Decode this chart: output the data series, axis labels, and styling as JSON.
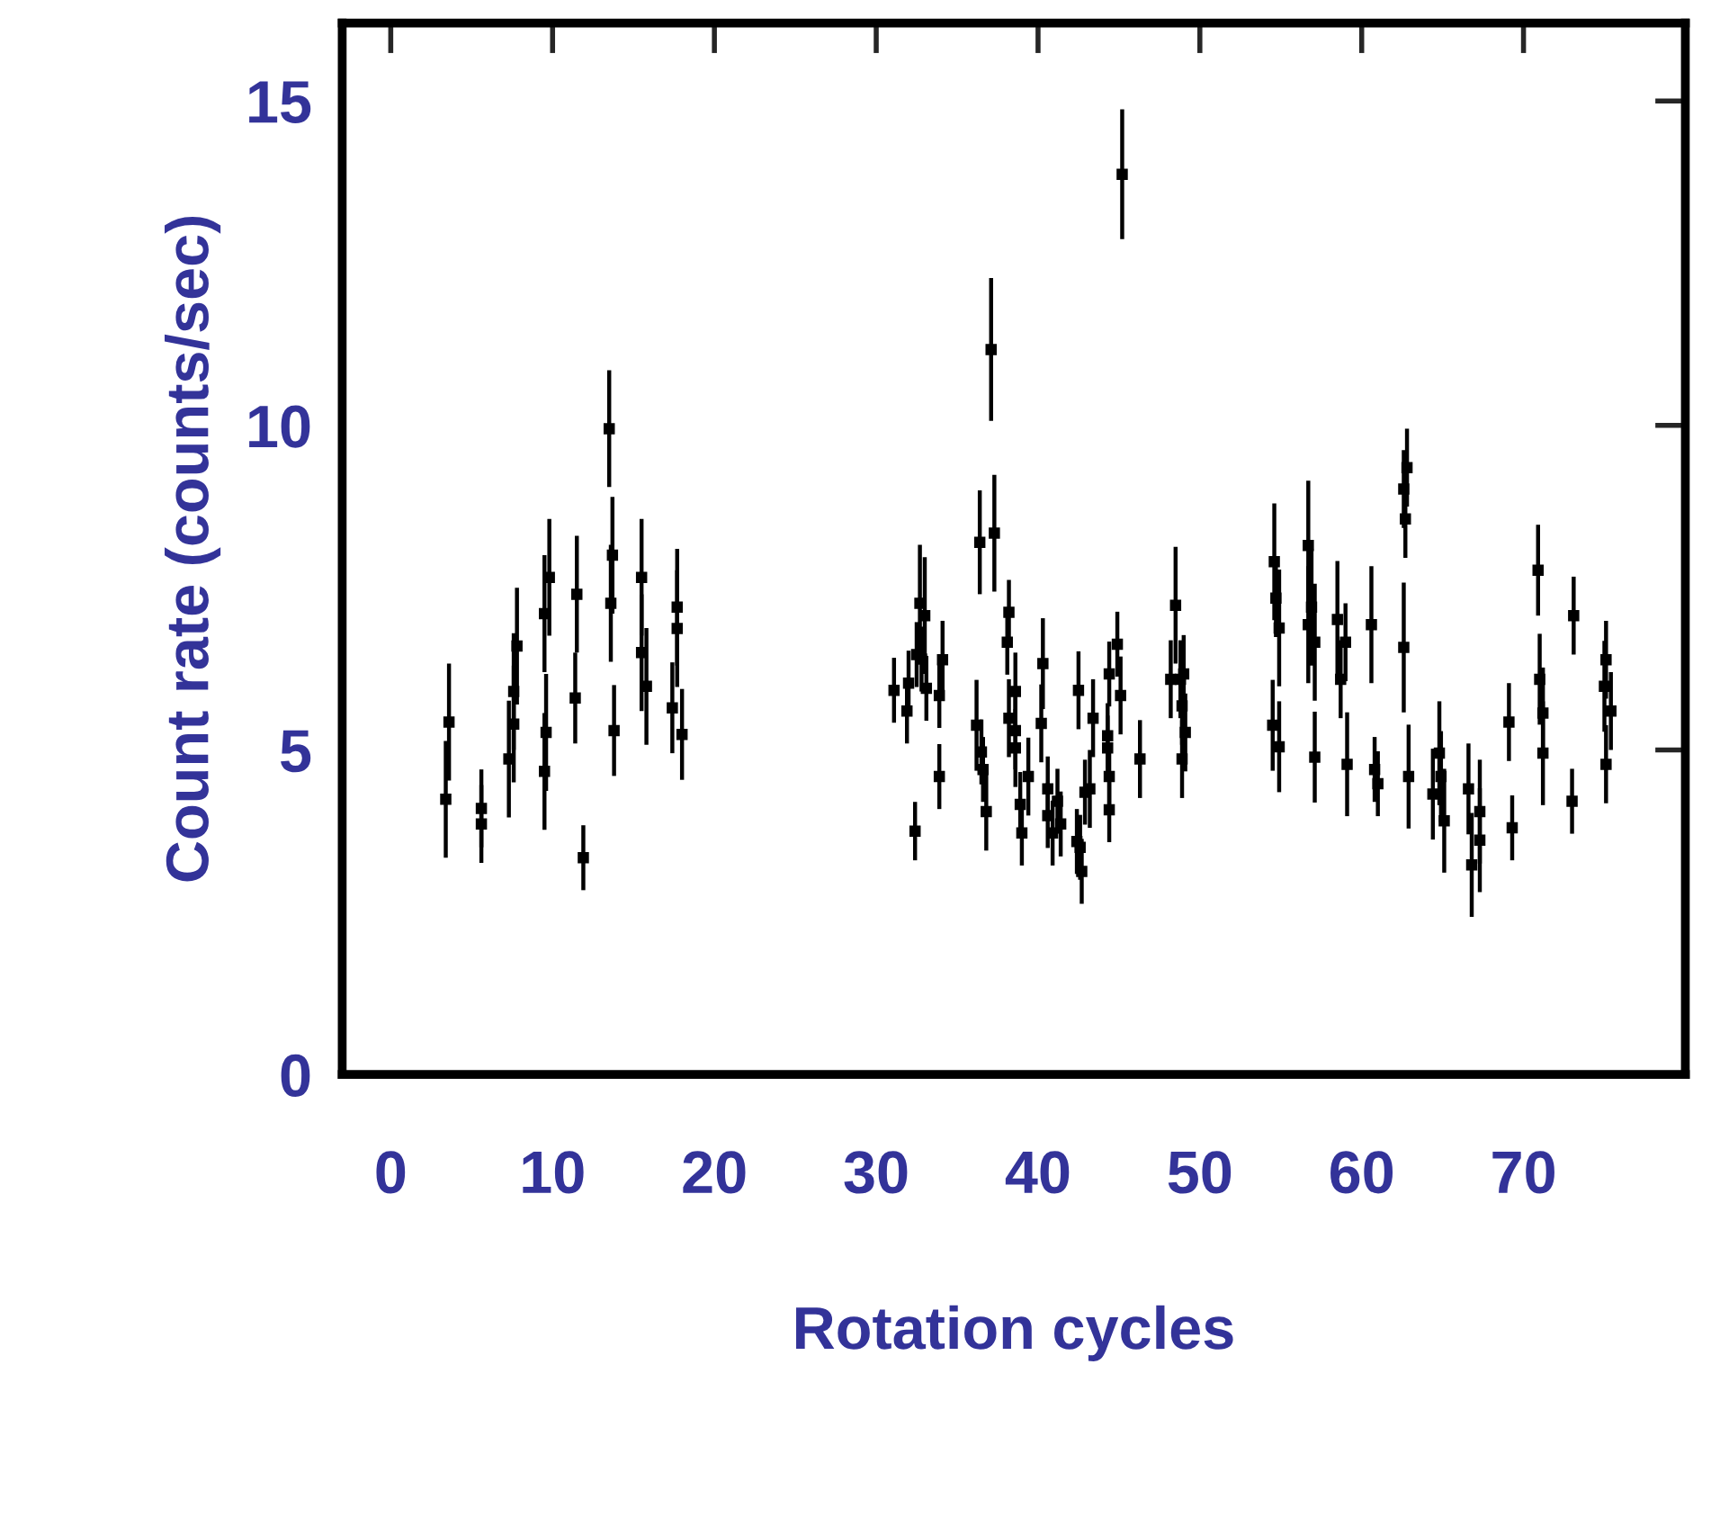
{
  "chart_data": {
    "type": "scatter",
    "xlabel": "Rotation cycles",
    "ylabel": "Count rate (counts/sec)",
    "xlim": [
      -3,
      80
    ],
    "xticks": [
      0,
      10,
      20,
      30,
      40,
      50,
      60,
      70
    ],
    "ylim": [
      0,
      16.2
    ],
    "yticks": [
      0,
      5,
      10,
      15
    ],
    "marker": "square",
    "grid": false,
    "legend": false,
    "series": [
      {
        "color": "#000000",
        "x": [
          3.4,
          3.6,
          5.6,
          5.6,
          7.6,
          7.6,
          7.8,
          7.3,
          9.5,
          9.8,
          9.6,
          9.5,
          11.5,
          11.4,
          11.9,
          13.5,
          13.7,
          13.6,
          13.8,
          15.5,
          15.5,
          15.8,
          17.7,
          17.7,
          17.4,
          18.0,
          31.1,
          31.9,
          32.0,
          32.5,
          32.7,
          33.0,
          32.8,
          33.1,
          32.4,
          33.9,
          34.1,
          33.9,
          36.4,
          37.3,
          37.1,
          36.2,
          36.5,
          36.6,
          36.8,
          38.1,
          38.2,
          38.2,
          38.6,
          38.6,
          38.6,
          38.9,
          39.0,
          39.4,
          40.3,
          40.2,
          40.6,
          40.6,
          40.9,
          41.2,
          41.4,
          42.5,
          42.4,
          42.7,
          42.6,
          42.9,
          43.4,
          43.2,
          44.3,
          44.3,
          44.4,
          44.4,
          44.4,
          44.9,
          45.1,
          45.2,
          46.3,
          48.5,
          48.2,
          48.8,
          49.0,
          48.9,
          49.1,
          48.9,
          54.6,
          54.7,
          54.9,
          54.5,
          54.9,
          56.7,
          56.7,
          57.1,
          56.9,
          57.1,
          58.5,
          59.0,
          58.7,
          59.1,
          60.6,
          60.8,
          61.0,
          62.6,
          62.9,
          62.8,
          62.6,
          62.7,
          64.4,
          64.9,
          65.1,
          64.8,
          66.6,
          67.3,
          67.3,
          66.8,
          69.1,
          69.3,
          70.9,
          71.0,
          71.2,
          71.2,
          73.1,
          73.0,
          75.0,
          75.4,
          75.1,
          75.1
        ],
        "values": [
          4.24,
          5.43,
          4.1,
          3.86,
          5.4,
          5.9,
          6.6,
          4.86,
          7.1,
          7.66,
          5.27,
          4.67,
          7.4,
          5.8,
          3.34,
          9.95,
          8.0,
          7.26,
          5.3,
          7.66,
          6.5,
          5.98,
          7.2,
          6.87,
          5.65,
          5.24,
          5.92,
          5.6,
          6.03,
          6.47,
          7.26,
          7.07,
          6.4,
          5.95,
          3.75,
          5.84,
          6.39,
          4.59,
          8.2,
          8.34,
          11.17,
          5.38,
          4.97,
          4.7,
          4.05,
          6.66,
          7.12,
          5.49,
          5.3,
          5.9,
          5.03,
          4.16,
          3.72,
          4.59,
          6.33,
          5.41,
          4.4,
          3.99,
          3.72,
          4.21,
          3.86,
          5.92,
          3.59,
          3.13,
          3.5,
          4.35,
          5.49,
          4.4,
          5.22,
          5.03,
          4.08,
          4.59,
          6.17,
          6.63,
          5.84,
          13.87,
          4.86,
          7.23,
          6.09,
          6.09,
          6.17,
          5.68,
          5.27,
          4.86,
          7.9,
          7.34,
          6.88,
          5.38,
          5.05,
          8.15,
          6.93,
          6.66,
          7.2,
          4.89,
          7.01,
          6.66,
          6.09,
          4.78,
          6.93,
          4.7,
          4.48,
          6.58,
          4.59,
          9.35,
          9.02,
          8.56,
          4.32,
          4.59,
          3.91,
          4.95,
          4.4,
          4.05,
          3.61,
          3.23,
          5.43,
          3.8,
          7.77,
          6.09,
          4.95,
          5.57,
          7.07,
          4.21,
          5.98,
          5.6,
          4.78,
          6.39
        ],
        "errors": [
          0.9,
          0.9,
          0.6,
          0.6,
          0.9,
          0.9,
          0.9,
          0.9,
          0.9,
          0.9,
          0.9,
          0.9,
          0.9,
          0.7,
          0.5,
          0.9,
          0.9,
          0.9,
          0.7,
          0.9,
          0.9,
          0.9,
          0.9,
          0.9,
          0.7,
          0.7,
          0.5,
          0.5,
          0.5,
          0.5,
          0.9,
          0.9,
          0.5,
          0.5,
          0.45,
          0.5,
          0.6,
          0.5,
          0.8,
          0.9,
          1.1,
          0.7,
          0.5,
          0.5,
          0.6,
          0.5,
          0.5,
          0.6,
          0.6,
          0.6,
          0.6,
          0.5,
          0.5,
          0.6,
          0.7,
          0.6,
          0.5,
          0.5,
          0.5,
          0.5,
          0.5,
          0.6,
          0.5,
          0.5,
          0.5,
          0.5,
          0.6,
          0.6,
          0.5,
          0.5,
          0.5,
          0.5,
          0.5,
          0.5,
          0.6,
          1.0,
          0.6,
          0.9,
          0.6,
          0.6,
          0.6,
          0.6,
          0.6,
          0.6,
          0.9,
          0.6,
          0.9,
          0.7,
          0.7,
          1.0,
          0.9,
          0.9,
          0.9,
          0.7,
          0.9,
          0.6,
          0.6,
          0.8,
          0.9,
          0.5,
          0.5,
          1.0,
          0.8,
          0.6,
          0.6,
          0.6,
          0.7,
          0.7,
          0.8,
          0.8,
          0.7,
          0.8,
          0.8,
          0.8,
          0.6,
          0.5,
          0.7,
          0.7,
          0.8,
          0.7,
          0.6,
          0.5,
          0.7,
          0.6,
          0.6,
          0.6
        ],
        "xerrors": [
          0.3,
          0.3,
          0.3,
          0.3,
          0.3,
          0.3,
          0.3,
          0.3,
          0.3,
          0.3,
          0.3,
          0.3,
          0.3,
          0.3,
          0.3,
          0.3,
          0.3,
          0.3,
          0.3,
          0.3,
          0.3,
          0.3,
          0.3,
          0.3,
          0.3,
          0.3,
          0.3,
          0.3,
          0.3,
          0.3,
          0.3,
          0.3,
          0.3,
          0.3,
          0.3,
          0.3,
          0.3,
          0.3,
          0.3,
          0.3,
          0.3,
          0.3,
          0.3,
          0.3,
          0.3,
          0.3,
          0.3,
          0.3,
          0.3,
          0.3,
          0.3,
          0.3,
          0.3,
          0.3,
          0.3,
          0.3,
          0.3,
          0.3,
          0.3,
          0.3,
          0.3,
          0.3,
          0.3,
          0.3,
          0.3,
          0.3,
          0.3,
          0.3,
          0.3,
          0.3,
          0.3,
          0.3,
          0.3,
          0.3,
          0.3,
          0.3,
          0.3,
          0.3,
          0.3,
          0.3,
          0.3,
          0.3,
          0.3,
          0.3,
          0.3,
          0.3,
          0.3,
          0.3,
          0.3,
          0.3,
          0.3,
          0.3,
          0.3,
          0.3,
          0.3,
          0.3,
          0.3,
          0.3,
          0.3,
          0.3,
          0.3,
          0.3,
          0.3,
          0.3,
          0.3,
          0.3,
          0.3,
          0.3,
          0.3,
          0.3,
          0.3,
          0.3,
          0.3,
          0.3,
          0.3,
          0.3,
          0.3,
          0.3,
          0.3,
          0.3,
          0.3,
          0.3,
          0.3,
          0.3,
          0.3,
          0.3
        ]
      }
    ]
  }
}
